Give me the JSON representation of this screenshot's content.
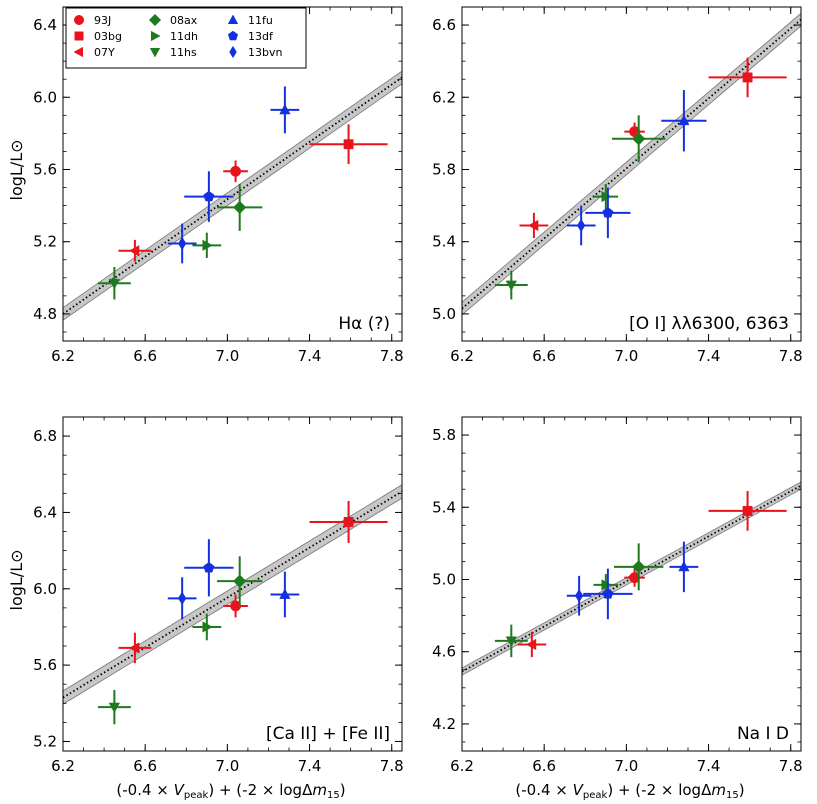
{
  "figure": {
    "ylabel": "logL/L⊙",
    "xlabel_parts": {
      "a": "(-0.4 × ",
      "vsym": "V",
      "vsub": "peak",
      "b": ") + (-2 × log",
      "delta": "Δ",
      "msym": "m",
      "msub": "15",
      "c": ")"
    }
  },
  "legend": {
    "entries": [
      {
        "label": "93J",
        "marker": "circle",
        "color": "#e8141c"
      },
      {
        "label": "03bg",
        "marker": "square",
        "color": "#e8141c"
      },
      {
        "label": "07Y",
        "marker": "triangle-left",
        "color": "#e8141c"
      },
      {
        "label": "08ax",
        "marker": "diamond",
        "color": "#1e7a1e"
      },
      {
        "label": "11dh",
        "marker": "triangle-right",
        "color": "#1e7a1e"
      },
      {
        "label": "11hs",
        "marker": "triangle-down",
        "color": "#1e7a1e"
      },
      {
        "label": "11fu",
        "marker": "triangle-up",
        "color": "#1530e0"
      },
      {
        "label": "13df",
        "marker": "pentagon",
        "color": "#1530e0"
      },
      {
        "label": "13bvn",
        "marker": "thin-diamond",
        "color": "#1530e0"
      }
    ]
  },
  "chart_data": [
    {
      "type": "scatter",
      "panel": "top-left",
      "title": "Hα (?)",
      "xlim": [
        6.2,
        7.85
      ],
      "ylim": [
        4.65,
        6.5
      ],
      "xticks": [
        "6.2",
        "6.6",
        "7.0",
        "7.4",
        "7.8"
      ],
      "yticks": [
        "4.8",
        "5.2",
        "5.6",
        "6.0",
        "6.4"
      ],
      "fit": {
        "x0": 6.2,
        "y0": 4.8,
        "x1": 7.85,
        "y1": 6.11,
        "band": 0.035
      },
      "points": [
        {
          "sn": "93J",
          "x": 7.04,
          "y": 5.59,
          "xerr": 0.06,
          "yerr": 0.06
        },
        {
          "sn": "03bg",
          "x": 7.59,
          "y": 5.74,
          "xerr": 0.19,
          "yerr": 0.11
        },
        {
          "sn": "07Y",
          "x": 6.55,
          "y": 5.15,
          "xerr": 0.08,
          "yerr": 0.06
        },
        {
          "sn": "08ax",
          "x": 7.06,
          "y": 5.39,
          "xerr": 0.11,
          "yerr": 0.13
        },
        {
          "sn": "11dh",
          "x": 6.9,
          "y": 5.18,
          "xerr": 0.07,
          "yerr": 0.07
        },
        {
          "sn": "11hs",
          "x": 6.45,
          "y": 4.97,
          "xerr": 0.08,
          "yerr": 0.09
        },
        {
          "sn": "11fu",
          "x": 7.28,
          "y": 5.93,
          "xerr": 0.07,
          "yerr": 0.13
        },
        {
          "sn": "13df",
          "x": 6.91,
          "y": 5.45,
          "xerr": 0.12,
          "yerr": 0.14
        },
        {
          "sn": "13bvn",
          "x": 6.78,
          "y": 5.19,
          "xerr": 0.07,
          "yerr": 0.11
        }
      ]
    },
    {
      "type": "scatter",
      "panel": "top-right",
      "title": "[O I] λλ6300, 6363",
      "xlim": [
        6.2,
        7.85
      ],
      "ylim": [
        4.85,
        6.7
      ],
      "xticks": [
        "6.2",
        "6.6",
        "7.0",
        "7.4",
        "7.8"
      ],
      "yticks": [
        "5.0",
        "5.4",
        "5.8",
        "6.2",
        "6.6"
      ],
      "fit": {
        "x0": 6.2,
        "y0": 5.03,
        "x1": 7.85,
        "y1": 6.63,
        "band": 0.035
      },
      "points": [
        {
          "sn": "93J",
          "x": 7.04,
          "y": 6.01,
          "xerr": 0.05,
          "yerr": 0.05
        },
        {
          "sn": "03bg",
          "x": 7.59,
          "y": 6.31,
          "xerr": 0.19,
          "yerr": 0.11
        },
        {
          "sn": "07Y",
          "x": 6.55,
          "y": 5.49,
          "xerr": 0.07,
          "yerr": 0.07
        },
        {
          "sn": "08ax",
          "x": 7.06,
          "y": 5.97,
          "xerr": 0.13,
          "yerr": 0.13
        },
        {
          "sn": "11dh",
          "x": 6.9,
          "y": 5.65,
          "xerr": 0.06,
          "yerr": 0.07
        },
        {
          "sn": "11hs",
          "x": 6.44,
          "y": 5.16,
          "xerr": 0.08,
          "yerr": 0.08
        },
        {
          "sn": "11fu",
          "x": 7.28,
          "y": 6.07,
          "xerr": 0.11,
          "yerr": 0.17
        },
        {
          "sn": "13df",
          "x": 6.91,
          "y": 5.56,
          "xerr": 0.11,
          "yerr": 0.14
        },
        {
          "sn": "13bvn",
          "x": 6.78,
          "y": 5.49,
          "xerr": 0.07,
          "yerr": 0.11
        }
      ]
    },
    {
      "type": "scatter",
      "panel": "bottom-left",
      "title": "[Ca II] + [Fe II]",
      "xlim": [
        6.2,
        7.85
      ],
      "ylim": [
        5.15,
        6.9
      ],
      "xticks": [
        "6.2",
        "6.6",
        "7.0",
        "7.4",
        "7.8"
      ],
      "yticks": [
        "5.2",
        "5.6",
        "6.0",
        "6.4",
        "6.8"
      ],
      "fit": {
        "x0": 6.2,
        "y0": 5.43,
        "x1": 7.85,
        "y1": 6.51,
        "band": 0.035
      },
      "points": [
        {
          "sn": "93J",
          "x": 7.04,
          "y": 5.91,
          "xerr": 0.06,
          "yerr": 0.06
        },
        {
          "sn": "03bg",
          "x": 7.59,
          "y": 6.35,
          "xerr": 0.19,
          "yerr": 0.11
        },
        {
          "sn": "07Y",
          "x": 6.55,
          "y": 5.69,
          "xerr": 0.08,
          "yerr": 0.08
        },
        {
          "sn": "08ax",
          "x": 7.06,
          "y": 6.04,
          "xerr": 0.11,
          "yerr": 0.13
        },
        {
          "sn": "11dh",
          "x": 6.9,
          "y": 5.8,
          "xerr": 0.07,
          "yerr": 0.07
        },
        {
          "sn": "11hs",
          "x": 6.45,
          "y": 5.38,
          "xerr": 0.08,
          "yerr": 0.09
        },
        {
          "sn": "11fu",
          "x": 7.28,
          "y": 5.97,
          "xerr": 0.07,
          "yerr": 0.12
        },
        {
          "sn": "13df",
          "x": 6.91,
          "y": 6.11,
          "xerr": 0.12,
          "yerr": 0.15
        },
        {
          "sn": "13bvn",
          "x": 6.78,
          "y": 5.95,
          "xerr": 0.07,
          "yerr": 0.11
        }
      ]
    },
    {
      "type": "scatter",
      "panel": "bottom-right",
      "title": "Na I D",
      "xlim": [
        6.2,
        7.85
      ],
      "ylim": [
        4.05,
        5.9
      ],
      "xticks": [
        "6.2",
        "6.6",
        "7.0",
        "7.4",
        "7.8"
      ],
      "yticks": [
        "4.2",
        "4.6",
        "5.0",
        "5.4",
        "5.8"
      ],
      "fit": {
        "x0": 6.2,
        "y0": 4.49,
        "x1": 7.85,
        "y1": 5.52,
        "band": 0.02
      },
      "points": [
        {
          "sn": "93J",
          "x": 7.04,
          "y": 5.01,
          "xerr": 0.05,
          "yerr": 0.05
        },
        {
          "sn": "03bg",
          "x": 7.59,
          "y": 5.38,
          "xerr": 0.19,
          "yerr": 0.11
        },
        {
          "sn": "07Y",
          "x": 6.54,
          "y": 4.64,
          "xerr": 0.07,
          "yerr": 0.07
        },
        {
          "sn": "08ax",
          "x": 7.06,
          "y": 5.07,
          "xerr": 0.12,
          "yerr": 0.13
        },
        {
          "sn": "11dh",
          "x": 6.9,
          "y": 4.97,
          "xerr": 0.06,
          "yerr": 0.06
        },
        {
          "sn": "11hs",
          "x": 6.44,
          "y": 4.66,
          "xerr": 0.08,
          "yerr": 0.09
        },
        {
          "sn": "11fu",
          "x": 7.28,
          "y": 5.07,
          "xerr": 0.07,
          "yerr": 0.14
        },
        {
          "sn": "13df",
          "x": 6.91,
          "y": 4.92,
          "xerr": 0.12,
          "yerr": 0.14
        },
        {
          "sn": "13bvn",
          "x": 6.77,
          "y": 4.91,
          "xerr": 0.06,
          "yerr": 0.11
        }
      ]
    }
  ]
}
